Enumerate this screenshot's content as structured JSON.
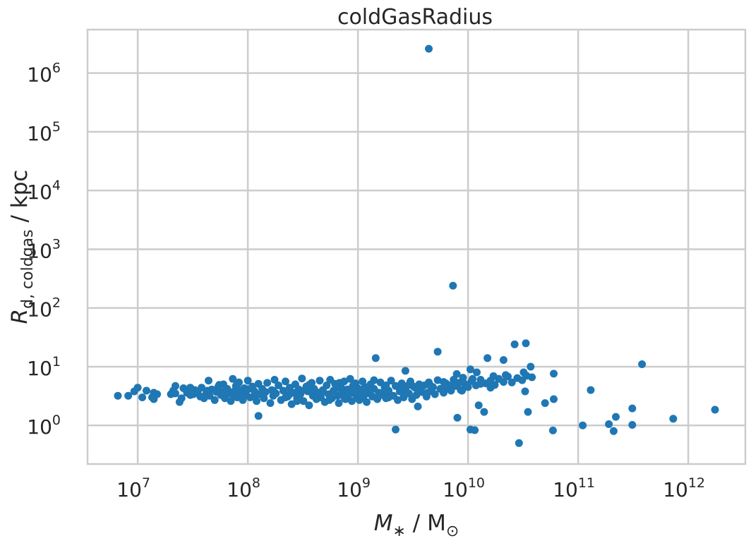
{
  "chart_data": {
    "type": "scatter",
    "title": "coldGasRadius",
    "xlabel": {
      "symbol": "M",
      "sub": "∗",
      "rest": " / M",
      "rest_sub": "⊙"
    },
    "ylabel": {
      "symbol": "R",
      "sub": "d, coldgas",
      "rest": " / kpc"
    },
    "xscale": "log",
    "yscale": "log",
    "xlim": [
      3500000.0,
      3300000000000.0
    ],
    "ylim": [
      0.22,
      5500000.0
    ],
    "grid": true,
    "color": "#1f77b4",
    "xticks": [
      {
        "base": "10",
        "exp": "7",
        "value": 10000000.0
      },
      {
        "base": "10",
        "exp": "8",
        "value": 100000000.0
      },
      {
        "base": "10",
        "exp": "9",
        "value": 1000000000.0
      },
      {
        "base": "10",
        "exp": "10",
        "value": 10000000000.0
      },
      {
        "base": "10",
        "exp": "11",
        "value": 100000000000.0
      },
      {
        "base": "10",
        "exp": "12",
        "value": 1000000000000.0
      }
    ],
    "yticks": [
      {
        "base": "10",
        "exp": "0",
        "value": 1
      },
      {
        "base": "10",
        "exp": "1",
        "value": 10
      },
      {
        "base": "10",
        "exp": "2",
        "value": 100
      },
      {
        "base": "10",
        "exp": "3",
        "value": 1000
      },
      {
        "base": "10",
        "exp": "4",
        "value": 10000
      },
      {
        "base": "10",
        "exp": "5",
        "value": 100000
      },
      {
        "base": "10",
        "exp": "6",
        "value": 1000000
      }
    ],
    "points": [
      [
        4400000000.0,
        2600000.0
      ],
      [
        7300000000.0,
        240
      ],
      [
        5300000000.0,
        18
      ],
      [
        1450000000.0,
        14
      ],
      [
        26500000000.0,
        24
      ],
      [
        33500000000.0,
        25
      ],
      [
        380000000000.0,
        11
      ],
      [
        15000000000.0,
        14
      ],
      [
        21000000000.0,
        13
      ],
      [
        130000000000.0,
        4.0
      ],
      [
        60000000000.0,
        7.6
      ],
      [
        37000000000.0,
        10
      ],
      [
        2700000000.0,
        8.5
      ],
      [
        7900000000.0,
        7.5
      ],
      [
        11000000000.0,
        6.2
      ],
      [
        12000000000.0,
        8.0
      ],
      [
        10500000000.0,
        9.0
      ],
      [
        16000000000.0,
        4.4
      ],
      [
        33000000000.0,
        3.8
      ],
      [
        12500000000.0,
        2.2
      ],
      [
        14000000000.0,
        1.7
      ],
      [
        35000000000.0,
        1.7
      ],
      [
        50000000000.0,
        2.4
      ],
      [
        60000000000.0,
        2.8
      ],
      [
        8000000000.0,
        1.35
      ],
      [
        10500000000.0,
        0.85
      ],
      [
        11500000000.0,
        0.83
      ],
      [
        2200000000.0,
        0.85
      ],
      [
        29000000000.0,
        0.5
      ],
      [
        59000000000.0,
        0.82
      ],
      [
        110000000000.0,
        1.0
      ],
      [
        190000000000.0,
        1.05
      ],
      [
        210000000000.0,
        0.8
      ],
      [
        220000000000.0,
        1.4
      ],
      [
        310000000000.0,
        1.95
      ],
      [
        310000000000.0,
        1.02
      ],
      [
        730000000000.0,
        1.3
      ],
      [
        1750000000000.0,
        1.85
      ],
      [
        125000000.0,
        1.45
      ],
      [
        3500000000.0,
        2.1
      ],
      [
        6600000.0,
        3.2
      ],
      [
        8200000.0,
        3.2
      ],
      [
        9300000.0,
        3.8
      ],
      [
        10000000.0,
        4.4
      ],
      [
        11000000.0,
        3.0
      ],
      [
        12000000.0,
        3.9
      ],
      [
        13500000.0,
        3.0
      ],
      [
        14000000.0,
        3.6
      ],
      [
        14000000.0,
        2.8
      ],
      [
        20000000.0,
        3.4
      ],
      [
        22000000.0,
        3.5
      ],
      [
        22000000.0,
        4.7
      ],
      [
        24000000.0,
        2.5
      ],
      [
        25000000.0,
        2.9
      ],
      [
        26000000.0,
        4.3
      ],
      [
        28000000.0,
        3.6
      ],
      [
        30000000.0,
        4.4
      ],
      [
        32000000.0,
        3.4
      ],
      [
        33000000.0,
        4.0
      ],
      [
        35000000.0,
        3.7
      ],
      [
        37000000.0,
        3.1
      ],
      [
        38000000.0,
        4.4
      ],
      [
        40000000.0,
        2.9
      ],
      [
        42000000.0,
        3.5
      ],
      [
        44000000.0,
        5.8
      ],
      [
        45000000.0,
        3.2
      ],
      [
        47000000.0,
        4.1
      ],
      [
        50000000.0,
        2.7
      ],
      [
        52000000.0,
        3.7
      ],
      [
        54000000.0,
        4.6
      ],
      [
        57000000.0,
        3.3
      ],
      [
        60000000.0,
        5.0
      ],
      [
        62000000.0,
        2.9
      ],
      [
        65000000.0,
        4.2
      ],
      [
        68000000.0,
        3.5
      ],
      [
        70000000.0,
        2.6
      ],
      [
        73000000.0,
        6.2
      ],
      [
        75000000.0,
        3.8
      ],
      [
        78000000.0,
        4.7
      ],
      [
        80000000.0,
        3.0
      ],
      [
        83000000.0,
        5.4
      ],
      [
        86000000.0,
        3.6
      ],
      [
        90000000.0,
        2.7
      ],
      [
        93000000.0,
        4.3
      ],
      [
        96000000.0,
        3.3
      ],
      [
        100000000.0,
        5.8
      ],
      [
        105000000.0,
        3.0
      ],
      [
        110000000.0,
        4.6
      ],
      [
        115000000.0,
        3.8
      ],
      [
        120000000.0,
        2.6
      ],
      [
        125000000.0,
        5.1
      ],
      [
        130000000.0,
        3.4
      ],
      [
        135000000.0,
        4.2
      ],
      [
        140000000.0,
        2.9
      ],
      [
        145000000.0,
        3.7
      ],
      [
        150000000.0,
        5.3
      ],
      [
        160000000.0,
        2.4
      ],
      [
        165000000.0,
        4.0
      ],
      [
        170000000.0,
        3.2
      ],
      [
        175000000.0,
        6.0
      ],
      [
        180000000.0,
        3.5
      ],
      [
        190000000.0,
        4.8
      ],
      [
        200000000.0,
        2.7
      ],
      [
        210000000.0,
        3.9
      ],
      [
        220000000.0,
        5.6
      ],
      [
        230000000.0,
        3.1
      ],
      [
        240000000.0,
        4.4
      ],
      [
        250000000.0,
        2.3
      ],
      [
        260000000.0,
        3.6
      ],
      [
        270000000.0,
        5.0
      ],
      [
        280000000.0,
        2.9
      ],
      [
        290000000.0,
        4.1
      ],
      [
        300000000.0,
        3.4
      ],
      [
        310000000.0,
        6.3
      ],
      [
        320000000.0,
        2.6
      ],
      [
        340000000.0,
        4.6
      ],
      [
        350000000.0,
        3.8
      ],
      [
        360000000.0,
        2.2
      ],
      [
        380000000.0,
        5.3
      ],
      [
        390000000.0,
        3.2
      ],
      [
        400000000.0,
        4.2
      ],
      [
        420000000.0,
        2.8
      ],
      [
        440000000.0,
        3.6
      ],
      [
        450000000.0,
        5.8
      ],
      [
        460000000.0,
        3.0
      ],
      [
        480000000.0,
        4.0
      ],
      [
        500000000.0,
        2.5
      ],
      [
        520000000.0,
        4.8
      ],
      [
        540000000.0,
        3.4
      ],
      [
        560000000.0,
        6.0
      ],
      [
        580000000.0,
        2.9
      ],
      [
        600000000.0,
        3.9
      ],
      [
        620000000.0,
        5.1
      ],
      [
        650000000.0,
        3.2
      ],
      [
        670000000.0,
        2.4
      ],
      [
        700000000.0,
        4.5
      ],
      [
        720000000.0,
        3.6
      ],
      [
        750000000.0,
        5.6
      ],
      [
        770000000.0,
        2.8
      ],
      [
        800000000.0,
        4.1
      ],
      [
        820000000.0,
        3.3
      ],
      [
        850000000.0,
        6.2
      ],
      [
        880000000.0,
        2.6
      ],
      [
        900000000.0,
        4.7
      ],
      [
        930000000.0,
        3.5
      ],
      [
        950000000.0,
        5.2
      ],
      [
        980000000.0,
        3.0
      ],
      [
        1000000000.0,
        4.3
      ],
      [
        1030000000.0,
        2.7
      ],
      [
        1060000000.0,
        3.8
      ],
      [
        1100000000.0,
        5.6
      ],
      [
        1130000000.0,
        3.2
      ],
      [
        1160000000.0,
        4.5
      ],
      [
        1200000000.0,
        2.5
      ],
      [
        1250000000.0,
        3.7
      ],
      [
        1300000000.0,
        5.0
      ],
      [
        1350000000.0,
        3.1
      ],
      [
        1400000000.0,
        4.2
      ],
      [
        1500000000.0,
        2.8
      ],
      [
        1550000000.0,
        3.6
      ],
      [
        1600000000.0,
        5.4
      ],
      [
        1700000000.0,
        3.4
      ],
      [
        1750000000.0,
        4.4
      ],
      [
        1800000000.0,
        2.9
      ],
      [
        1900000000.0,
        3.9
      ],
      [
        2000000000.0,
        5.8
      ],
      [
        2100000000.0,
        3.2
      ],
      [
        2200000000.0,
        4.7
      ],
      [
        2300000000.0,
        2.7
      ],
      [
        2400000000.0,
        3.8
      ],
      [
        2500000000.0,
        5.2
      ],
      [
        2600000000.0,
        3.0
      ],
      [
        2700000000.0,
        4.1
      ],
      [
        2900000000.0,
        3.5
      ],
      [
        3000000000.0,
        5.6
      ],
      [
        3100000000.0,
        2.8
      ],
      [
        3300000000.0,
        4.4
      ],
      [
        3400000000.0,
        3.3
      ],
      [
        3600000000.0,
        5.0
      ],
      [
        3800000000.0,
        3.7
      ],
      [
        4000000000.0,
        4.8
      ],
      [
        4200000000.0,
        3.1
      ],
      [
        4400000000.0,
        5.4
      ],
      [
        4600000000.0,
        3.9
      ],
      [
        4800000000.0,
        4.5
      ],
      [
        5000000000.0,
        3.4
      ],
      [
        5300000000.0,
        5.9
      ],
      [
        5600000000.0,
        4.2
      ],
      [
        6000000000.0,
        3.6
      ],
      [
        6300000000.0,
        5.2
      ],
      [
        6600000000.0,
        4.4
      ],
      [
        7000000000.0,
        3.9
      ],
      [
        7400000000.0,
        6.0
      ],
      [
        7800000000.0,
        4.7
      ],
      [
        8200000000.0,
        5.3
      ],
      [
        8600000000.0,
        4.0
      ],
      [
        9000000000.0,
        6.5
      ],
      [
        9500000000.0,
        5.0
      ],
      [
        10000000000.0,
        4.5
      ],
      [
        10800000000.0,
        5.7
      ],
      [
        11800000000.0,
        4.8
      ],
      [
        13000000000.0,
        6.0
      ],
      [
        14500000000.0,
        5.2
      ],
      [
        16000000000.0,
        5.8
      ],
      [
        17500000000.0,
        4.9
      ],
      [
        19000000000.0,
        6.2
      ],
      [
        21000000000.0,
        5.5
      ],
      [
        23000000000.0,
        6.8
      ],
      [
        25000000000.0,
        5.4
      ],
      [
        28000000000.0,
        6.4
      ],
      [
        31000000000.0,
        5.9
      ],
      [
        34000000000.0,
        7.0
      ],
      [
        38000000000.0,
        6.6
      ],
      [
        32000000000.0,
        8.0
      ],
      [
        22000000000.0,
        7.2
      ],
      [
        17000000000.0,
        6.9
      ],
      [
        13000000000.0,
        5.1
      ],
      [
        9000000000.0,
        5.4
      ],
      [
        7000000000.0,
        4.8
      ],
      [
        6000000000.0,
        5.5
      ],
      [
        4500000000.0,
        4.9
      ],
      [
        3200000000.0,
        4.6
      ],
      [
        2400000000.0,
        4.3
      ],
      [
        1800000000.0,
        4.8
      ],
      [
        1300000000.0,
        4.0
      ],
      [
        900000000.0,
        3.9
      ],
      [
        640000000.0,
        4.3
      ],
      [
        470000000.0,
        3.6
      ],
      [
        330000000.0,
        4.0
      ],
      [
        240000000.0,
        3.4
      ],
      [
        170000000.0,
        3.9
      ],
      [
        120000000.0,
        3.3
      ],
      [
        85000000.0,
        4.0
      ],
      [
        60000000.0,
        3.7
      ],
      [
        43000000.0,
        3.9
      ],
      [
        30000000.0,
        3.3
      ],
      [
        21000000.0,
        3.9
      ],
      [
        15000000.0,
        3.4
      ],
      [
        2600000000.0,
        3.4
      ],
      [
        3500000000.0,
        4.1
      ],
      [
        4300000000.0,
        3.6
      ],
      [
        1100000000.0,
        3.1
      ],
      [
        1600000000.0,
        3.3
      ],
      [
        280000000.0,
        2.6
      ],
      [
        550000000.0,
        2.7
      ],
      [
        750000000.0,
        3.0
      ],
      [
        1200000000.0,
        3.5
      ],
      [
        1900000000.0,
        3.0
      ],
      [
        220000000.0,
        3.0
      ],
      [
        100000000.0,
        4.1
      ],
      [
        75000000.0,
        3.1
      ],
      [
        55000000.0,
        4.9
      ],
      [
        360000000.0,
        4.9
      ],
      [
        680000000.0,
        5.3
      ],
      [
        1400000000.0,
        5.9
      ],
      [
        2900000000.0,
        4.9
      ],
      [
        5800000000.0,
        4.1
      ],
      [
        8800000000.0,
        3.9
      ]
    ]
  }
}
